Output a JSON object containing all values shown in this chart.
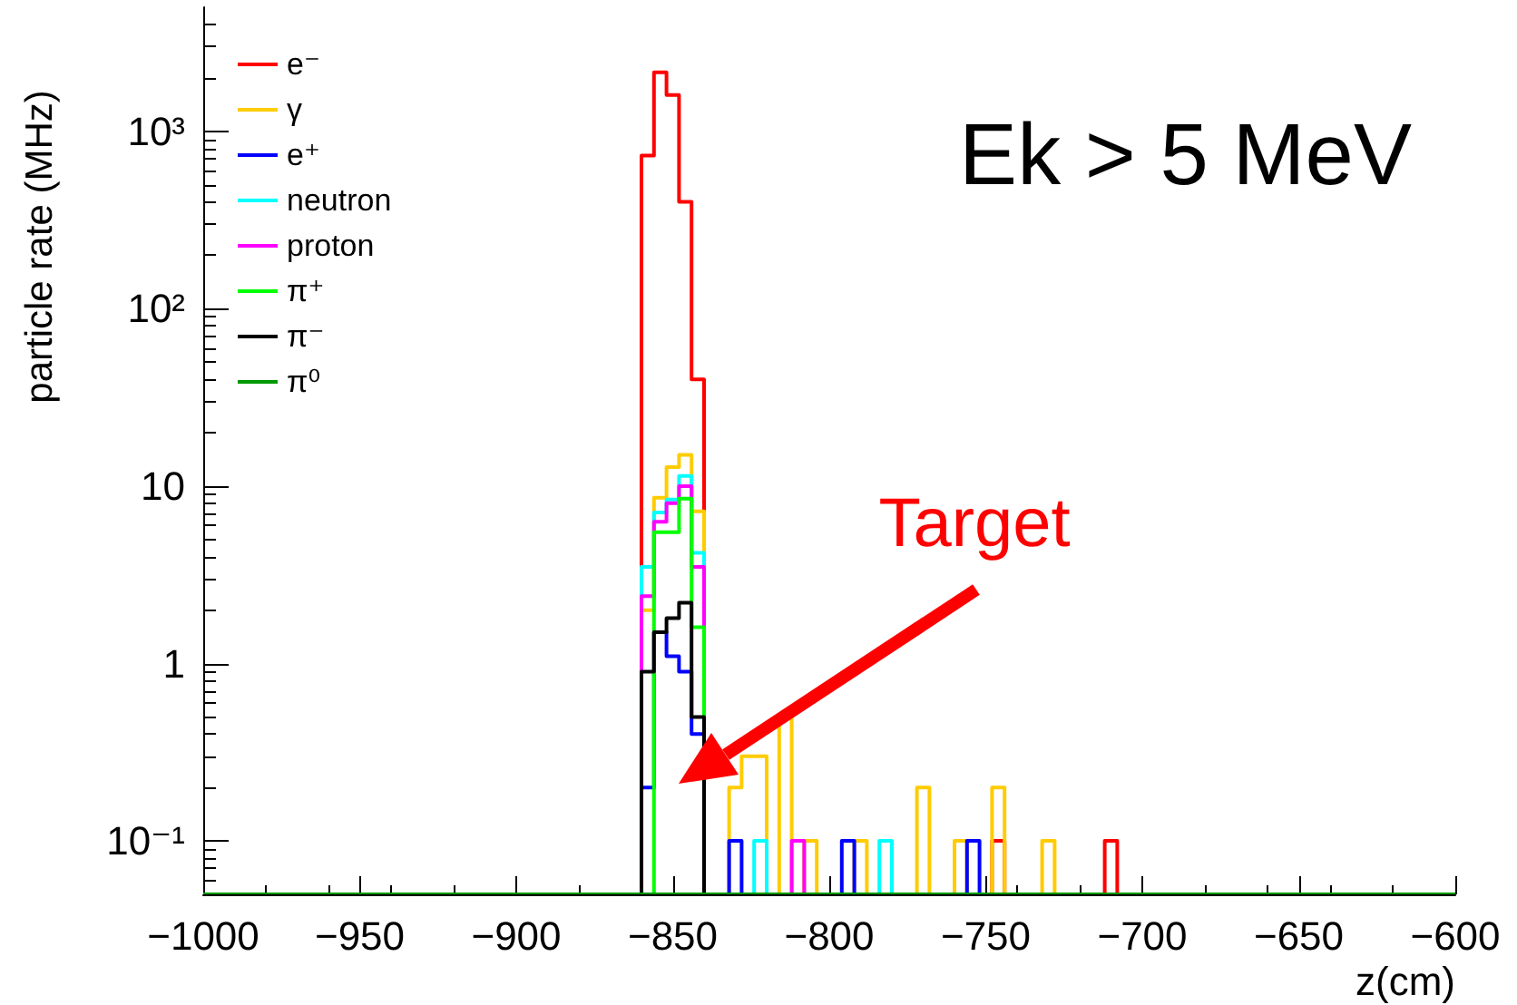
{
  "chart_data": {
    "type": "histogram",
    "xlabel": "z(cm)",
    "ylabel": "particle rate (MHz)",
    "log": "y",
    "legend": "top left",
    "line_style": "solid",
    "xlim": [
      -1000,
      -600
    ],
    "xticks": [
      -1000,
      -950,
      -900,
      -850,
      -800,
      -750,
      -700,
      -650,
      -600
    ],
    "ylim": [
      0.05,
      5000
    ],
    "yticks": [
      {
        "value": 0.1,
        "label": "10⁻¹"
      },
      1,
      10,
      {
        "value": 100,
        "label": "10²"
      },
      {
        "value": 1000,
        "label": "10³"
      }
    ],
    "bins": [
      -1000,
      -996,
      -992,
      -988,
      -984,
      -980,
      -976,
      -972,
      -968,
      -964,
      -960,
      -956,
      -952,
      -948,
      -944,
      -940,
      -936,
      -932,
      -928,
      -924,
      -920,
      -916,
      -912,
      -908,
      -904,
      -900,
      -896,
      -892,
      -888,
      -884,
      -880,
      -876,
      -872,
      -868,
      -864,
      -860,
      -856,
      -852,
      -848,
      -844,
      -840,
      -836,
      -832,
      -828,
      -824,
      -820,
      -816,
      -812,
      -808,
      -804,
      -800,
      -796,
      -792,
      -788,
      -784,
      -780,
      -776,
      -772,
      -768,
      -764,
      -760,
      -756,
      -752,
      -748,
      -744,
      -740,
      -736,
      -732,
      -728,
      -724,
      -720,
      -716,
      -712,
      -708,
      -704,
      -700,
      -696,
      -692,
      -688,
      -684,
      -680,
      -676,
      -672,
      -668,
      -664,
      -660,
      -656,
      -652,
      -648,
      -644,
      -640,
      -636,
      -632,
      -628,
      -624,
      -620,
      -616,
      -612,
      -608,
      -604,
      -600
    ],
    "series": [
      {
        "name": "e⁻",
        "color": "#ff0000",
        "values": [
          null,
          null,
          null,
          null,
          null,
          null,
          null,
          null,
          null,
          null,
          null,
          null,
          null,
          null,
          null,
          null,
          null,
          null,
          null,
          null,
          null,
          null,
          null,
          null,
          null,
          null,
          null,
          null,
          null,
          null,
          null,
          null,
          null,
          null,
          null,
          730,
          2150,
          1600,
          400,
          40,
          null,
          null,
          null,
          null,
          null,
          null,
          null,
          null,
          null,
          null,
          null,
          null,
          null,
          null,
          null,
          null,
          null,
          null,
          null,
          null,
          null,
          null,
          null,
          0.1,
          null,
          null,
          null,
          null,
          null,
          null,
          null,
          null,
          0.1,
          null,
          null,
          null,
          null,
          null,
          null,
          null,
          null,
          null,
          null,
          null,
          null,
          null,
          null,
          null,
          null,
          null,
          null,
          null,
          null,
          null,
          null,
          null,
          null,
          null,
          null,
          null
        ]
      },
      {
        "name": "γ",
        "color": "#ffcc00",
        "values": [
          null,
          null,
          null,
          null,
          null,
          null,
          null,
          null,
          null,
          null,
          null,
          null,
          null,
          null,
          null,
          null,
          null,
          null,
          null,
          null,
          null,
          null,
          null,
          null,
          null,
          null,
          null,
          null,
          null,
          null,
          null,
          null,
          null,
          null,
          null,
          2,
          8.6,
          12.8,
          15,
          7.2,
          null,
          null,
          0.2,
          0.3,
          0.3,
          null,
          0.5,
          null,
          0.1,
          null,
          null,
          null,
          0.1,
          null,
          null,
          null,
          null,
          0.2,
          null,
          null,
          0.1,
          null,
          null,
          0.2,
          null,
          null,
          null,
          0.1,
          null,
          null,
          null,
          null,
          null,
          null,
          null,
          null,
          null,
          null,
          null,
          null,
          null,
          null,
          null,
          null,
          null,
          null,
          null,
          null,
          null,
          null,
          null,
          null,
          null,
          null,
          null,
          null,
          null,
          null,
          null,
          null
        ]
      },
      {
        "name": "e⁺",
        "color": "#0000ff",
        "values": [
          null,
          null,
          null,
          null,
          null,
          null,
          null,
          null,
          null,
          null,
          null,
          null,
          null,
          null,
          null,
          null,
          null,
          null,
          null,
          null,
          null,
          null,
          null,
          null,
          null,
          null,
          null,
          null,
          null,
          null,
          null,
          null,
          null,
          null,
          null,
          0.2,
          1.5,
          1.1,
          0.9,
          0.4,
          null,
          null,
          0.1,
          null,
          null,
          null,
          null,
          null,
          null,
          null,
          null,
          0.1,
          null,
          null,
          null,
          null,
          null,
          null,
          null,
          null,
          null,
          0.1,
          null,
          null,
          null,
          null,
          null,
          null,
          null,
          null,
          null,
          null,
          null,
          null,
          null,
          null,
          null,
          null,
          null,
          null,
          null,
          null,
          null,
          null,
          null,
          null,
          null,
          null,
          null,
          null,
          null,
          null,
          null,
          null,
          null,
          null,
          null,
          null,
          null,
          null
        ]
      },
      {
        "name": "neutron",
        "color": "#00ffff",
        "values": [
          null,
          null,
          null,
          null,
          null,
          null,
          null,
          null,
          null,
          null,
          null,
          null,
          null,
          null,
          null,
          null,
          null,
          null,
          null,
          null,
          null,
          null,
          null,
          null,
          null,
          null,
          null,
          null,
          null,
          null,
          null,
          null,
          null,
          null,
          null,
          3.5,
          7.1,
          8.4,
          11.4,
          4.2,
          null,
          null,
          null,
          null,
          0.1,
          null,
          null,
          null,
          null,
          null,
          null,
          null,
          null,
          null,
          0.1,
          null,
          null,
          null,
          null,
          null,
          null,
          null,
          null,
          null,
          null,
          null,
          null,
          null,
          null,
          null,
          null,
          null,
          null,
          null,
          null,
          null,
          null,
          null,
          null,
          null,
          null,
          null,
          null,
          null,
          null,
          null,
          null,
          null,
          null,
          null,
          null,
          null,
          null,
          null,
          null,
          null,
          null,
          null,
          null,
          null
        ]
      },
      {
        "name": "proton",
        "color": "#ff00ff",
        "values": [
          null,
          null,
          null,
          null,
          null,
          null,
          null,
          null,
          null,
          null,
          null,
          null,
          null,
          null,
          null,
          null,
          null,
          null,
          null,
          null,
          null,
          null,
          null,
          null,
          null,
          null,
          null,
          null,
          null,
          null,
          null,
          null,
          null,
          null,
          null,
          2.4,
          6.3,
          8,
          10,
          3.5,
          null,
          null,
          null,
          null,
          null,
          null,
          null,
          0.1,
          null,
          null,
          null,
          null,
          null,
          null,
          null,
          null,
          null,
          null,
          null,
          null,
          null,
          null,
          null,
          null,
          null,
          null,
          null,
          null,
          null,
          null,
          null,
          null,
          null,
          null,
          null,
          null,
          null,
          null,
          null,
          null,
          null,
          null,
          null,
          null,
          null,
          null,
          null,
          null,
          null,
          null,
          null,
          null,
          null,
          null,
          null,
          null,
          null,
          null,
          null,
          null
        ]
      },
      {
        "name": "π⁺",
        "color": "#00ff00",
        "values": [
          null,
          null,
          null,
          null,
          null,
          null,
          null,
          null,
          null,
          null,
          null,
          null,
          null,
          null,
          null,
          null,
          null,
          null,
          null,
          null,
          null,
          null,
          null,
          null,
          null,
          null,
          null,
          null,
          null,
          null,
          null,
          null,
          null,
          null,
          null,
          null,
          5.5,
          5.5,
          8.5,
          1.6,
          null,
          null,
          null,
          null,
          null,
          null,
          null,
          null,
          null,
          null,
          null,
          null,
          null,
          null,
          null,
          null,
          null,
          null,
          null,
          null,
          null,
          null,
          null,
          null,
          null,
          null,
          null,
          null,
          null,
          null,
          null,
          null,
          null,
          null,
          null,
          null,
          null,
          null,
          null,
          null,
          null,
          null,
          null,
          null,
          null,
          null,
          null,
          null,
          null,
          null,
          null,
          null,
          null,
          null,
          null,
          null,
          null,
          null,
          null,
          null
        ]
      },
      {
        "name": "π⁻",
        "color": "#000000",
        "values": [
          null,
          null,
          null,
          null,
          null,
          null,
          null,
          null,
          null,
          null,
          null,
          null,
          null,
          null,
          null,
          null,
          null,
          null,
          null,
          null,
          null,
          null,
          null,
          null,
          null,
          null,
          null,
          null,
          null,
          null,
          null,
          null,
          null,
          null,
          null,
          0.9,
          1.5,
          1.8,
          2.2,
          0.5,
          null,
          null,
          null,
          null,
          null,
          null,
          null,
          null,
          null,
          null,
          null,
          null,
          null,
          null,
          null,
          null,
          null,
          null,
          null,
          null,
          null,
          null,
          null,
          null,
          null,
          null,
          null,
          null,
          null,
          null,
          null,
          null,
          null,
          null,
          null,
          null,
          null,
          null,
          null,
          null,
          null,
          null,
          null,
          null,
          null,
          null,
          null,
          null,
          null,
          null,
          null,
          null,
          null,
          null,
          null,
          null,
          null,
          null,
          null,
          null
        ]
      },
      {
        "name": "π⁰",
        "color": "#009900",
        "values": [
          null,
          null,
          null,
          null,
          null,
          null,
          null,
          null,
          null,
          null,
          null,
          null,
          null,
          null,
          null,
          null,
          null,
          null,
          null,
          null,
          null,
          null,
          null,
          null,
          null,
          null,
          null,
          null,
          null,
          null,
          null,
          null,
          null,
          null,
          null,
          null,
          null,
          null,
          null,
          null,
          null,
          null,
          null,
          null,
          null,
          null,
          null,
          null,
          null,
          null,
          null,
          null,
          null,
          null,
          null,
          null,
          null,
          null,
          null,
          null,
          null,
          null,
          null,
          null,
          null,
          null,
          null,
          null,
          null,
          null,
          null,
          null,
          null,
          null,
          null,
          null,
          null,
          null,
          null,
          null,
          null,
          null,
          null,
          null,
          null,
          null,
          null,
          null,
          null,
          null,
          null,
          null,
          null,
          null,
          null,
          null,
          null,
          null,
          null,
          null
        ]
      }
    ],
    "annotations": [
      "Ek > 5 MeV",
      "Target"
    ]
  }
}
